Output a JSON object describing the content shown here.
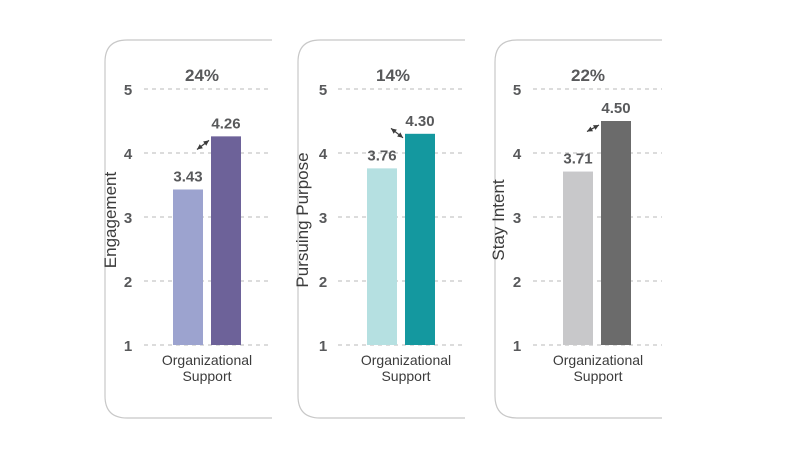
{
  "colors": {
    "panel1": [
      "#9ca3cf",
      "#6d6299"
    ],
    "panel2": [
      "#b5e0e1",
      "#14989f"
    ],
    "panel3": [
      "#c8c8ca",
      "#6b6b6b"
    ],
    "text": "#58595b",
    "grid": "#b9b9b9"
  },
  "chart_data": [
    {
      "type": "bar",
      "ylabel": "Engagement",
      "annotation": "24%",
      "xlabel_lines": [
        "Organizational",
        "Support"
      ],
      "yticks": [
        "1",
        "2",
        "3",
        "4",
        "5"
      ],
      "ylim": [
        1,
        5
      ],
      "values": [
        3.43,
        4.26
      ],
      "value_labels": [
        "3.43",
        "4.26"
      ],
      "grid": true
    },
    {
      "type": "bar",
      "ylabel": "Pursuing Purpose",
      "annotation": "14%",
      "xlabel_lines": [
        "Organizational",
        "Support"
      ],
      "yticks": [
        "1",
        "2",
        "3",
        "4",
        "5"
      ],
      "ylim": [
        1,
        5
      ],
      "values": [
        3.76,
        4.3
      ],
      "value_labels": [
        "3.76",
        "4.30"
      ],
      "grid": true
    },
    {
      "type": "bar",
      "ylabel": "Stay Intent",
      "annotation": "22%",
      "xlabel_lines": [
        "Organizational",
        "Support"
      ],
      "yticks": [
        "1",
        "2",
        "3",
        "4",
        "5"
      ],
      "ylim": [
        1,
        5
      ],
      "values": [
        3.71,
        4.5
      ],
      "value_labels": [
        "3.71",
        "4.50"
      ],
      "grid": true
    }
  ]
}
